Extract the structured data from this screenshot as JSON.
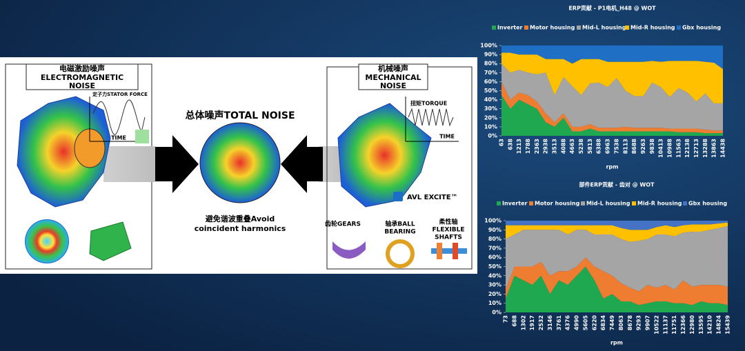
{
  "diagram": {
    "em_title_cn": "电磁激励噪声",
    "em_title_en": [
      "ELECTROMAGNETIC",
      "NOISE"
    ],
    "stator_force": "定子力STATOR FORCE",
    "time_left": "TIME",
    "total_noise": "总体噪声TOTAL NOISE",
    "avoid": [
      "避免谐波重叠Avoid",
      "coincident harmonics"
    ],
    "mech_title_cn": "机械噪声",
    "mech_title_en": [
      "MECHANICAL",
      "NOISE"
    ],
    "torque": "扭矩TORQUE",
    "time_right": "TIME",
    "avl": "AVL EXCITE™",
    "gears": "齿轮GEARS",
    "bearing": [
      "轴承BALL",
      "BEARING"
    ],
    "shafts": [
      "柔性轴",
      "FLEXIBLE",
      "SHAFTS"
    ]
  },
  "chart_data": [
    {
      "type": "stacked-area",
      "title": "ERP贡献 - P1电机_H48 @ WOT",
      "xlabel": "rpm",
      "categories": [
        "63",
        "638",
        "1213",
        "1788",
        "2363",
        "2938",
        "3513",
        "4088",
        "4663",
        "5238",
        "5813",
        "6388",
        "6963",
        "7538",
        "8113",
        "8688",
        "9263",
        "9838",
        "10413",
        "10988",
        "11563",
        "12138",
        "12713",
        "13288",
        "13863",
        "14438"
      ],
      "ylim": [
        0,
        100
      ],
      "yticks": [
        {
          "value": 0,
          "label": "0%"
        },
        {
          "value": 10,
          "label": "10%"
        },
        {
          "value": 20,
          "label": "20%"
        },
        {
          "value": 30,
          "label": "30%"
        },
        {
          "value": 40,
          "label": "40%"
        },
        {
          "value": 50,
          "label": "50%"
        },
        {
          "value": 60,
          "label": "60%"
        },
        {
          "value": 70,
          "label": "70%"
        },
        {
          "value": 80,
          "label": "80%"
        },
        {
          "value": 90,
          "label": "90%"
        },
        {
          "value": 100,
          "label": "100%"
        }
      ],
      "series": [
        {
          "name": "Inverter",
          "color": "#1fa84f",
          "values": [
            45,
            30,
            40,
            35,
            30,
            15,
            10,
            20,
            5,
            5,
            8,
            5,
            5,
            5,
            5,
            5,
            5,
            5,
            5,
            5,
            4,
            4,
            4,
            3,
            3,
            3
          ]
        },
        {
          "name": "Motor housing",
          "color": "#ee7d31",
          "values": [
            15,
            10,
            8,
            10,
            8,
            10,
            5,
            5,
            5,
            5,
            5,
            4,
            4,
            4,
            5,
            4,
            4,
            4,
            4,
            3,
            4,
            4,
            4,
            4,
            3,
            3
          ]
        },
        {
          "name": "Mid-L housing",
          "color": "#a5a5a5",
          "values": [
            20,
            30,
            25,
            25,
            30,
            45,
            30,
            40,
            45,
            35,
            45,
            50,
            45,
            55,
            40,
            35,
            35,
            50,
            45,
            35,
            45,
            40,
            30,
            40,
            30,
            30
          ]
        },
        {
          "name": "Mid-R housing",
          "color": "#ffc000",
          "values": [
            12,
            22,
            17,
            20,
            22,
            15,
            40,
            20,
            25,
            40,
            27,
            26,
            28,
            18,
            32,
            38,
            38,
            24,
            28,
            40,
            30,
            35,
            45,
            35,
            45,
            38
          ]
        },
        {
          "name": "Gbx housing",
          "color": "#1f6fc4",
          "values": [
            8,
            8,
            10,
            10,
            10,
            15,
            15,
            15,
            20,
            15,
            15,
            15,
            18,
            18,
            18,
            18,
            18,
            17,
            18,
            17,
            17,
            17,
            17,
            18,
            19,
            26
          ]
        }
      ]
    },
    {
      "type": "stacked-area",
      "title": "部件ERP贡献 - 齿对 @ WOT",
      "xlabel": "rpm",
      "categories": [
        "73",
        "688",
        "1302",
        "1917",
        "2532",
        "3146",
        "3761",
        "4376",
        "4990",
        "5605",
        "6220",
        "6834",
        "7449",
        "8063",
        "8678",
        "9293",
        "9907",
        "10522",
        "11137",
        "11751",
        "12366",
        "12980",
        "13595",
        "14210",
        "14824",
        "15439"
      ],
      "ylim": [
        0,
        100
      ],
      "yticks": [
        {
          "value": 0,
          "label": "0%"
        },
        {
          "value": 10,
          "label": "10%"
        },
        {
          "value": 20,
          "label": "20%"
        },
        {
          "value": 30,
          "label": "30%"
        },
        {
          "value": 40,
          "label": "40%"
        },
        {
          "value": 50,
          "label": "50%"
        },
        {
          "value": 60,
          "label": "60%"
        },
        {
          "value": 70,
          "label": "70%"
        },
        {
          "value": 80,
          "label": "80%"
        },
        {
          "value": 90,
          "label": "90%"
        },
        {
          "value": 100,
          "label": "100%"
        }
      ],
      "series": [
        {
          "name": "Inverter",
          "color": "#1fa84f",
          "values": [
            15,
            40,
            35,
            30,
            40,
            20,
            35,
            30,
            40,
            50,
            35,
            15,
            20,
            12,
            12,
            8,
            10,
            12,
            12,
            10,
            10,
            8,
            12,
            10,
            10,
            8
          ]
        },
        {
          "name": "Motor housing",
          "color": "#ee7d31",
          "values": [
            10,
            10,
            15,
            20,
            15,
            20,
            10,
            15,
            10,
            10,
            15,
            30,
            20,
            20,
            15,
            15,
            20,
            15,
            18,
            15,
            25,
            20,
            18,
            20,
            20,
            20
          ]
        },
        {
          "name": "Mid-L housing",
          "color": "#a5a5a5",
          "values": [
            55,
            35,
            40,
            40,
            35,
            50,
            45,
            40,
            40,
            30,
            35,
            40,
            45,
            48,
            50,
            55,
            50,
            58,
            55,
            58,
            52,
            60,
            58,
            60,
            62,
            66
          ]
        },
        {
          "name": "Mid-R housing",
          "color": "#ffc000",
          "values": [
            15,
            10,
            5,
            5,
            5,
            5,
            5,
            10,
            5,
            5,
            10,
            10,
            10,
            12,
            13,
            12,
            10,
            8,
            10,
            10,
            8,
            8,
            8,
            6,
            5,
            4
          ]
        },
        {
          "name": "Gbx housing",
          "color": "#4472c4",
          "values": [
            5,
            5,
            5,
            5,
            5,
            5,
            5,
            5,
            5,
            5,
            5,
            5,
            5,
            8,
            10,
            10,
            10,
            7,
            5,
            7,
            5,
            4,
            4,
            4,
            3,
            2
          ]
        }
      ]
    }
  ]
}
